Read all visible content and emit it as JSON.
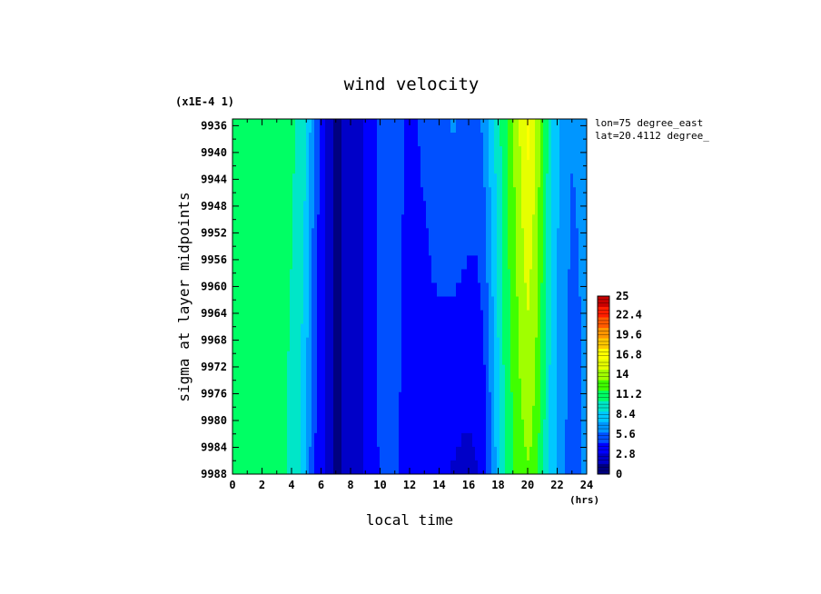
{
  "chart_data": {
    "type": "heatmap",
    "title": "wind velocity",
    "xlabel": "local time",
    "xunit": "(hrs)",
    "ylabel": "sigma at layer midpoints",
    "yscale_label": "(x1E-4 1)",
    "annotations": [
      "lon=75 degree_east",
      "lat=20.4112 degree_"
    ],
    "xlim": [
      0,
      24
    ],
    "ylim": [
      9988,
      9935
    ],
    "x_ticks": [
      "0",
      "2",
      "4",
      "6",
      "8",
      "10",
      "12",
      "14",
      "16",
      "18",
      "20",
      "22",
      "24"
    ],
    "y_ticks": [
      "9936",
      "9940",
      "9944",
      "9948",
      "9952",
      "9956",
      "9960",
      "9964",
      "9968",
      "9972",
      "9976",
      "9980",
      "9984",
      "9988"
    ],
    "colorbar": {
      "min": 0,
      "max": 25,
      "tick_labels": [
        "25",
        "22.4",
        "19.6",
        "16.8",
        "14",
        "11.2",
        "8.4",
        "5.6",
        "2.8",
        "0"
      ],
      "colors": [
        "#000080",
        "#0000c8",
        "#0000ff",
        "#0050ff",
        "#0096ff",
        "#00c8ff",
        "#00e6c8",
        "#00ff64",
        "#40ff00",
        "#a0ff00",
        "#e6ff00",
        "#ffff00",
        "#ffc800",
        "#ff9600",
        "#ff5a00",
        "#ff1e00",
        "#c80000"
      ]
    },
    "profile_time": [
      0,
      0.5,
      1,
      1.5,
      2,
      2.5,
      3,
      3.5,
      4,
      4.5,
      5,
      5.5,
      6,
      6.5,
      7,
      7.5,
      8,
      8.5,
      9,
      9.5,
      10,
      10.5,
      11,
      11.5,
      12,
      12.5,
      13,
      13.5,
      14,
      14.5,
      15,
      15.5,
      16,
      16.5,
      17,
      17.5,
      18,
      18.5,
      19,
      19.5,
      20,
      20.5,
      21,
      21.5,
      22,
      22.5,
      23,
      23.5,
      24
    ],
    "profile_top": [
      11.5,
      11.2,
      10.8,
      10.6,
      10.6,
      10.6,
      10.6,
      10.6,
      10.5,
      10.2,
      9.0,
      6.0,
      3.8,
      2.4,
      1.2,
      1.6,
      2.4,
      2.6,
      3.0,
      3.6,
      4.8,
      5.8,
      5.4,
      4.6,
      4.2,
      4.4,
      4.8,
      5.2,
      5.6,
      5.8,
      6.0,
      5.8,
      5.6,
      5.4,
      6.2,
      8.0,
      9.8,
      11.4,
      13.2,
      15.0,
      16.6,
      15.2,
      12.4,
      9.4,
      7.6,
      6.6,
      6.0,
      6.2,
      7.0
    ],
    "profile_bottom": [
      11.8,
      11.4,
      11.0,
      10.8,
      10.7,
      10.7,
      10.6,
      10.4,
      10.0,
      9.0,
      7.0,
      4.6,
      3.4,
      2.2,
      1.2,
      1.6,
      2.4,
      2.6,
      3.2,
      3.8,
      4.6,
      5.4,
      5.0,
      4.0,
      3.6,
      3.4,
      3.2,
      3.4,
      3.2,
      3.0,
      2.8,
      2.6,
      2.6,
      2.8,
      3.2,
      5.6,
      8.2,
      10.6,
      11.6,
      12.6,
      13.2,
      12.6,
      10.6,
      8.6,
      7.2,
      6.0,
      5.0,
      5.4,
      7.0
    ]
  }
}
